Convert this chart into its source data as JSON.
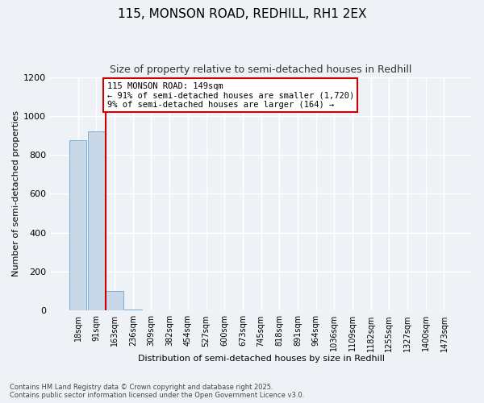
{
  "title1": "115, MONSON ROAD, REDHILL, RH1 2EX",
  "title2": "Size of property relative to semi-detached houses in Redhill",
  "xlabel": "Distribution of semi-detached houses by size in Redhill",
  "ylabel": "Number of semi-detached properties",
  "categories": [
    "18sqm",
    "91sqm",
    "163sqm",
    "236sqm",
    "309sqm",
    "382sqm",
    "454sqm",
    "527sqm",
    "600sqm",
    "673sqm",
    "745sqm",
    "818sqm",
    "891sqm",
    "964sqm",
    "1036sqm",
    "1109sqm",
    "1182sqm",
    "1255sqm",
    "1327sqm",
    "1400sqm",
    "1473sqm"
  ],
  "values": [
    875,
    920,
    100,
    5,
    0,
    0,
    0,
    0,
    0,
    0,
    0,
    0,
    0,
    0,
    0,
    0,
    0,
    0,
    0,
    0,
    0
  ],
  "bar_color": "#c8d8e8",
  "bar_edge_color": "#7aafd4",
  "property_line_color": "#cc0000",
  "annotation_text": "115 MONSON ROAD: 149sqm\n← 91% of semi-detached houses are smaller (1,720)\n9% of semi-detached houses are larger (164) →",
  "annotation_box_color": "#cc0000",
  "ylim": [
    0,
    1200
  ],
  "yticks": [
    0,
    200,
    400,
    600,
    800,
    1000,
    1200
  ],
  "background_color": "#eef2f7",
  "grid_color": "#ffffff",
  "footnote1": "Contains HM Land Registry data © Crown copyright and database right 2025.",
  "footnote2": "Contains public sector information licensed under the Open Government Licence v3.0."
}
